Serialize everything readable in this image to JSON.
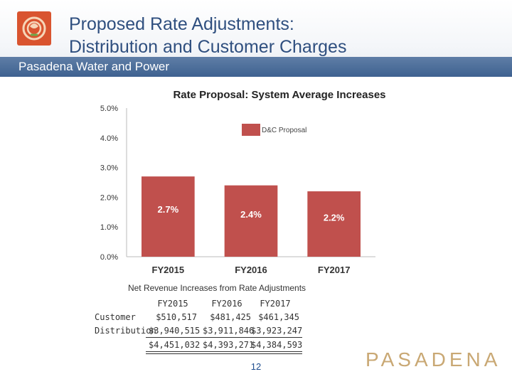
{
  "header": {
    "title_line1": "Proposed Rate Adjustments:",
    "title_line2": "Distribution and Customer Charges",
    "subtitle": "Pasadena Water and Power"
  },
  "colors": {
    "bar": "#c0504d",
    "header_blue": "#3e6190",
    "title_text": "#2f4f7f",
    "brand": "#c9a874"
  },
  "chart_data": {
    "type": "bar",
    "title": "Rate Proposal: System Average Increases",
    "categories": [
      "FY2015",
      "FY2016",
      "FY2017"
    ],
    "series": [
      {
        "name": "D&C Proposal",
        "values": [
          2.7,
          2.4,
          2.2
        ]
      }
    ],
    "data_labels": [
      "2.7%",
      "2.4%",
      "2.2%"
    ],
    "y_ticks": [
      "0.0%",
      "1.0%",
      "2.0%",
      "3.0%",
      "4.0%",
      "5.0%"
    ],
    "ylim": [
      0,
      5
    ],
    "xlabel": "",
    "ylabel": "",
    "legend_position": "top-right",
    "grid": false
  },
  "revenue_table": {
    "caption": "Net Revenue Increases from Rate Adjustments",
    "columns": [
      "FY2015",
      "FY2016",
      "FY2017"
    ],
    "rows": [
      {
        "label": "Customer",
        "values": [
          "$510,517",
          "$481,425",
          "$461,345"
        ]
      },
      {
        "label": "Distribution",
        "values": [
          "$3,940,515",
          "$3,911,846",
          "$3,923,247"
        ]
      }
    ],
    "totals": [
      "$4,451,032",
      "$4,393,271",
      "$4,384,593"
    ]
  },
  "page_number": "12",
  "brand_text": "PASADENA"
}
